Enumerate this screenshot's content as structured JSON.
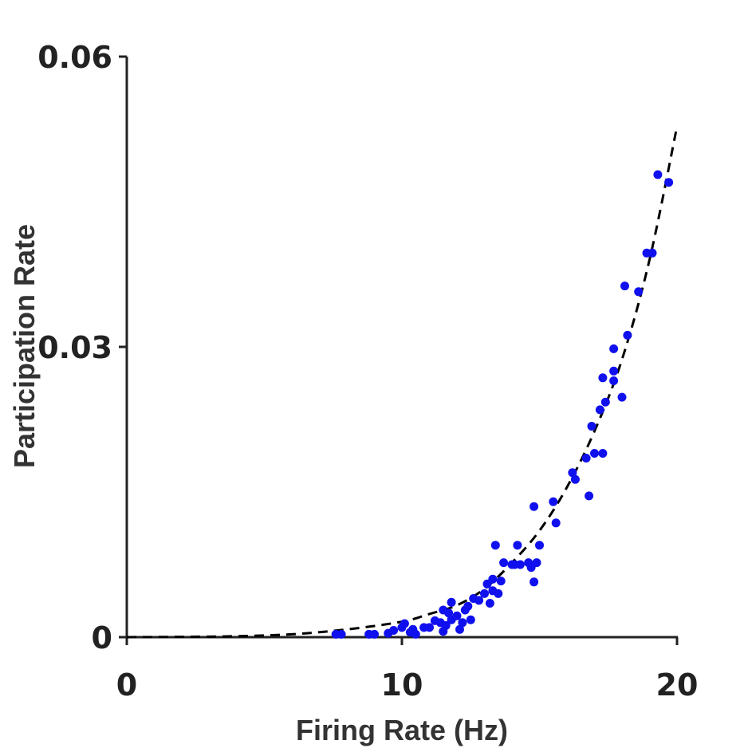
{
  "chart_data": {
    "type": "scatter",
    "title": "",
    "xlabel": "Firing Rate (Hz)",
    "ylabel": "Participation Rate",
    "xlim": [
      0,
      20
    ],
    "ylim": [
      0,
      0.06
    ],
    "xticks": [
      {
        "value": 0,
        "label": "0"
      },
      {
        "value": 10,
        "label": "10"
      },
      {
        "value": 20,
        "label": "20"
      }
    ],
    "yticks": [
      {
        "value": 0,
        "label": "0"
      },
      {
        "value": 0.03,
        "label": "0.03"
      },
      {
        "value": 0.06,
        "label": "0.06"
      }
    ],
    "grid": false,
    "legend": "none",
    "point_color": "#1010ee",
    "fit_color": "#000000",
    "fit": {
      "style": "dashed",
      "points": [
        [
          0,
          0.0
        ],
        [
          2,
          3e-05
        ],
        [
          4,
          0.0001
        ],
        [
          6,
          0.0003
        ],
        [
          8,
          0.0008
        ],
        [
          10,
          0.0016
        ],
        [
          11,
          0.0024
        ],
        [
          12,
          0.0033
        ],
        [
          13,
          0.005
        ],
        [
          14,
          0.0077
        ],
        [
          15,
          0.011
        ],
        [
          16,
          0.0155
        ],
        [
          17,
          0.0213
        ],
        [
          18,
          0.0287
        ],
        [
          19,
          0.039
        ],
        [
          20,
          0.0528
        ]
      ]
    },
    "points": [
      [
        7.6,
        0.0003
      ],
      [
        7.8,
        0.0003
      ],
      [
        8.8,
        0.0003
      ],
      [
        9.0,
        0.0003
      ],
      [
        9.5,
        0.0004
      ],
      [
        9.7,
        0.0007
      ],
      [
        10.0,
        0.001
      ],
      [
        10.1,
        0.0014
      ],
      [
        10.3,
        0.0005
      ],
      [
        10.4,
        0.0008
      ],
      [
        10.5,
        0.0003
      ],
      [
        10.8,
        0.001
      ],
      [
        11.0,
        0.001
      ],
      [
        11.2,
        0.0017
      ],
      [
        11.4,
        0.0015
      ],
      [
        11.5,
        0.0028
      ],
      [
        11.5,
        0.0006
      ],
      [
        11.6,
        0.0012
      ],
      [
        11.7,
        0.0025
      ],
      [
        11.8,
        0.0018
      ],
      [
        11.8,
        0.0036
      ],
      [
        12.0,
        0.0022
      ],
      [
        12.1,
        0.0008
      ],
      [
        12.2,
        0.0015
      ],
      [
        12.3,
        0.0028
      ],
      [
        12.4,
        0.0032
      ],
      [
        12.5,
        0.0018
      ],
      [
        12.6,
        0.004
      ],
      [
        12.8,
        0.0038
      ],
      [
        13.0,
        0.0045
      ],
      [
        13.1,
        0.0055
      ],
      [
        13.2,
        0.0035
      ],
      [
        13.3,
        0.0048
      ],
      [
        13.3,
        0.006
      ],
      [
        13.4,
        0.0095
      ],
      [
        13.5,
        0.0045
      ],
      [
        13.6,
        0.0058
      ],
      [
        13.7,
        0.0077
      ],
      [
        14.0,
        0.0075
      ],
      [
        14.1,
        0.0075
      ],
      [
        14.2,
        0.0095
      ],
      [
        14.3,
        0.0075
      ],
      [
        14.6,
        0.0077
      ],
      [
        14.7,
        0.0072
      ],
      [
        14.8,
        0.0135
      ],
      [
        14.8,
        0.0057
      ],
      [
        14.9,
        0.0077
      ],
      [
        15.0,
        0.0095
      ],
      [
        15.5,
        0.014
      ],
      [
        15.6,
        0.0118
      ],
      [
        16.2,
        0.017
      ],
      [
        16.3,
        0.0163
      ],
      [
        16.7,
        0.0185
      ],
      [
        16.8,
        0.0146
      ],
      [
        16.9,
        0.0218
      ],
      [
        17.0,
        0.019
      ],
      [
        17.2,
        0.0235
      ],
      [
        17.3,
        0.019
      ],
      [
        17.3,
        0.0268
      ],
      [
        17.4,
        0.0243
      ],
      [
        17.7,
        0.0298
      ],
      [
        17.7,
        0.0275
      ],
      [
        17.7,
        0.0265
      ],
      [
        18.0,
        0.0248
      ],
      [
        18.1,
        0.0363
      ],
      [
        18.2,
        0.0312
      ],
      [
        18.6,
        0.0357
      ],
      [
        18.9,
        0.0397
      ],
      [
        19.1,
        0.0397
      ],
      [
        19.3,
        0.0478
      ],
      [
        19.7,
        0.047
      ]
    ]
  }
}
